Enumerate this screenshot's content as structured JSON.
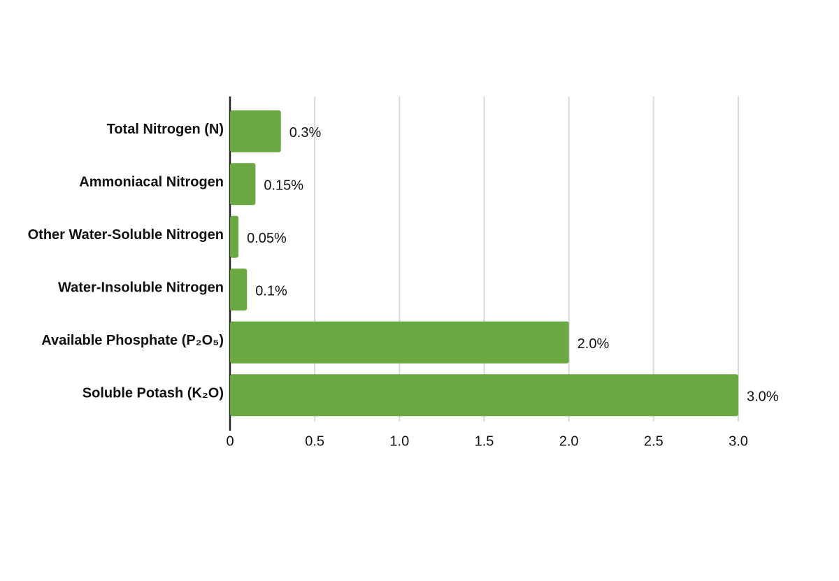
{
  "chart_data": {
    "type": "bar",
    "orientation": "horizontal",
    "categories": [
      "Total Nitrogen (N)",
      "Ammoniacal Nitrogen",
      "Other Water-Soluble Nitrogen",
      "Water-Insoluble Nitrogen",
      "Available Phosphate (P₂O₅)",
      "Soluble Potash (K₂O)"
    ],
    "values": [
      0.3,
      0.15,
      0.05,
      0.1,
      2.0,
      3.0
    ],
    "value_labels": [
      "0.3%",
      "0.15%",
      "0.05%",
      "0.1%",
      "2.0%",
      "3.0%"
    ],
    "color": "#6aa842",
    "xlim": [
      0,
      3
    ],
    "xticks": [
      0,
      0.5,
      {
        "value": 1,
        "label": "1.0"
      },
      1.5,
      {
        "value": 2,
        "label": "2.0"
      },
      2.5,
      {
        "value": 3,
        "label": "3.0"
      }
    ],
    "grid": true
  }
}
